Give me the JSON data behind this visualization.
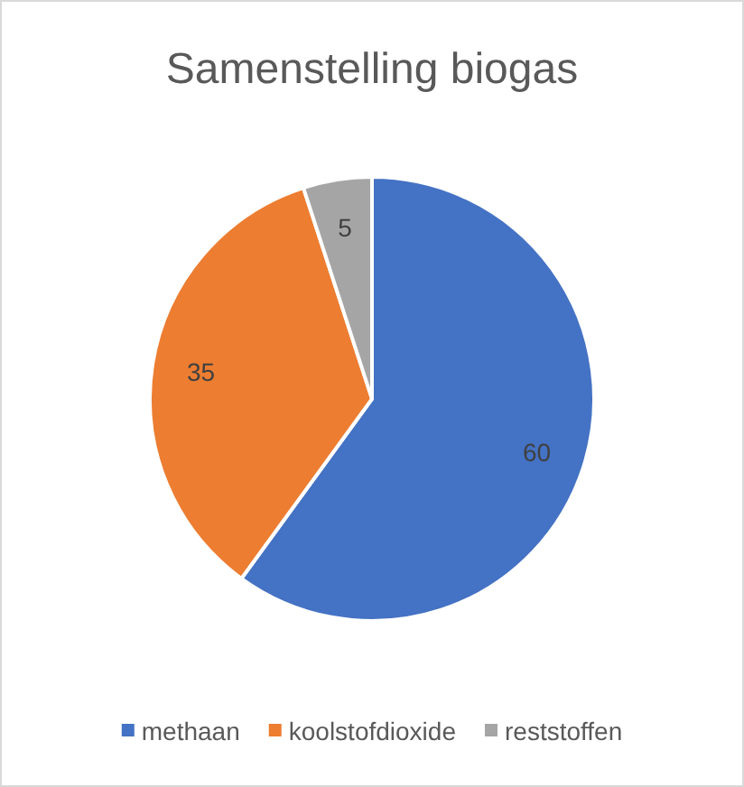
{
  "chart_data": {
    "type": "pie",
    "title": "Samenstelling biogas",
    "categories": [
      "methaan",
      "koolstofdioxide",
      "reststoffen"
    ],
    "values": [
      60,
      35,
      5
    ],
    "colors": [
      "#4472c4",
      "#ed7d31",
      "#a5a5a5"
    ],
    "data_labels": true,
    "legend": "bottom"
  }
}
